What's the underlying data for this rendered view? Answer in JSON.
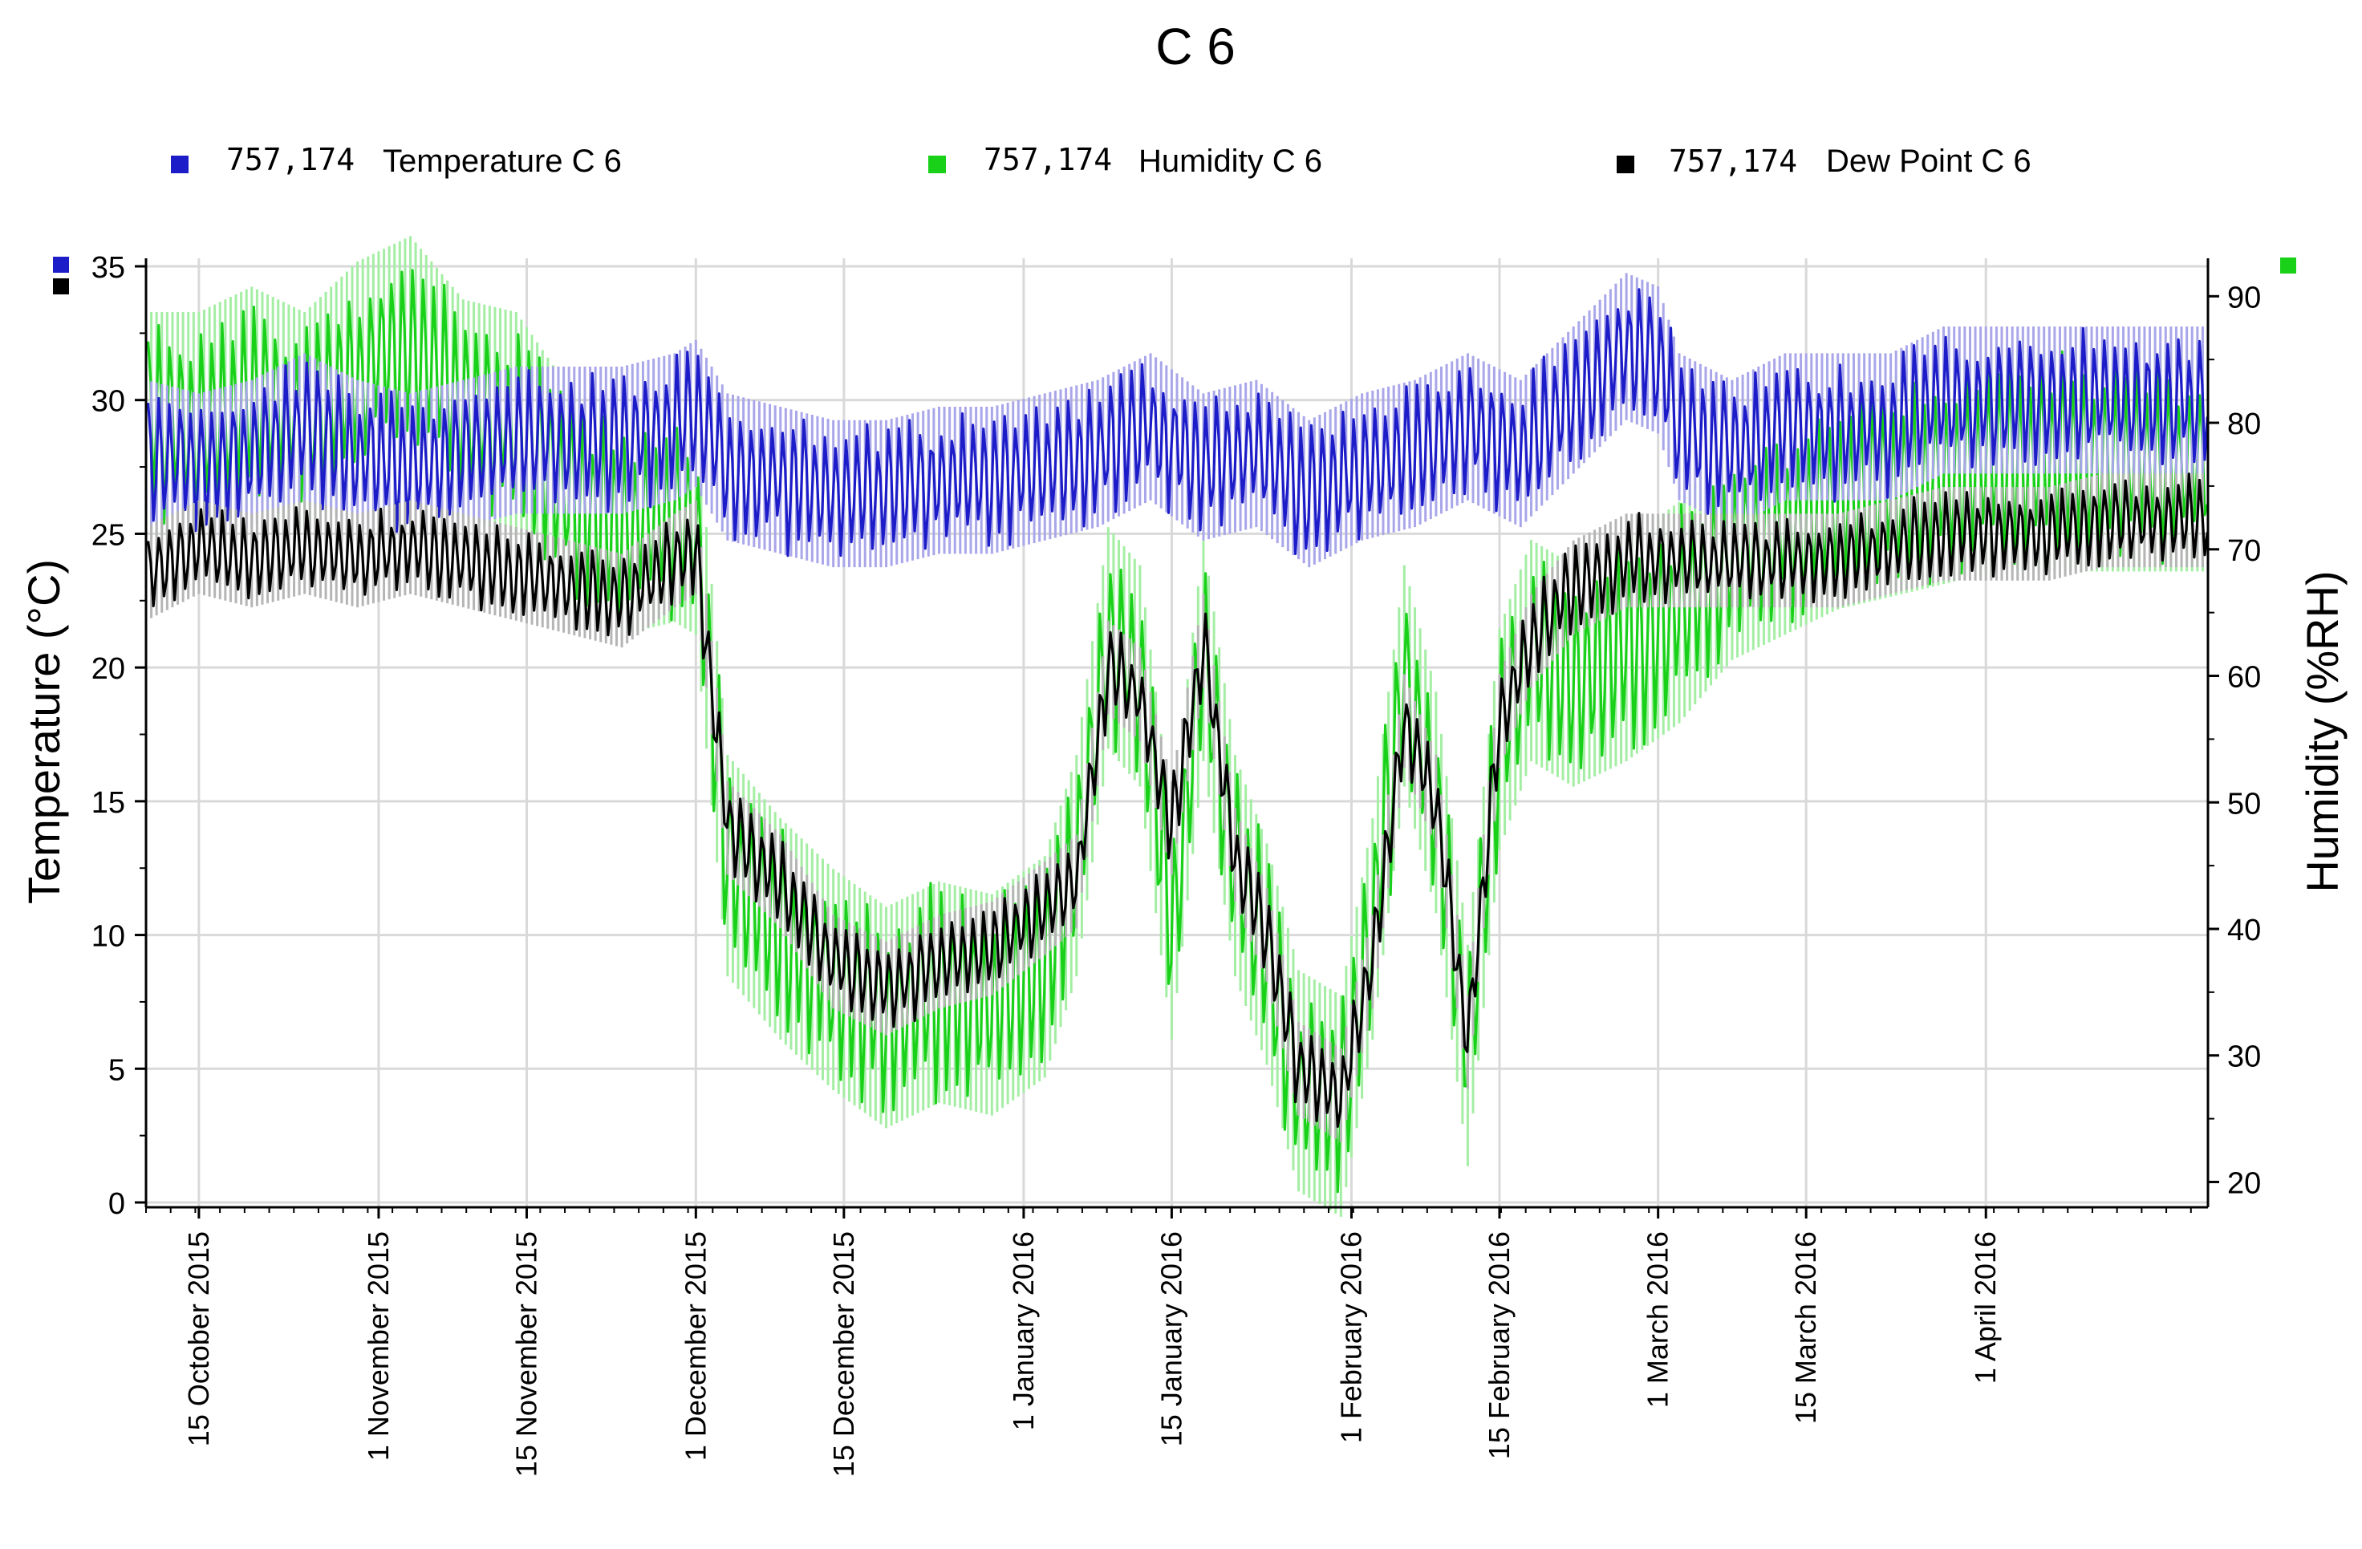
{
  "chart_data": {
    "type": "line",
    "title": "C 6",
    "ylabel_left": "Temperature (°C)",
    "ylabel_right": "Humidity (%RH)",
    "ylim_left": [
      0,
      35
    ],
    "ylim_right": [
      18,
      93
    ],
    "yticks_left": [
      0,
      5,
      10,
      15,
      20,
      25,
      30,
      35
    ],
    "yticks_right": [
      20,
      30,
      40,
      50,
      60,
      70,
      80,
      90
    ],
    "x_range_days": [
      -5,
      190
    ],
    "grid": true,
    "legend_position": "top",
    "x_ticks": [
      {
        "label": "15 October 2015",
        "day": 0
      },
      {
        "label": "1 November 2015",
        "day": 17
      },
      {
        "label": "15 November 2015",
        "day": 31
      },
      {
        "label": "1 December 2015",
        "day": 47
      },
      {
        "label": "15 December 2015",
        "day": 61
      },
      {
        "label": "1 January 2016",
        "day": 78
      },
      {
        "label": "15 January 2016",
        "day": 92
      },
      {
        "label": "1 February 2016",
        "day": 109
      },
      {
        "label": "15 February 2016",
        "day": 123
      },
      {
        "label": "1 March 2016",
        "day": 138
      },
      {
        "label": "15 March 2016",
        "day": 152
      },
      {
        "label": "1 April 2016",
        "day": 169
      }
    ],
    "series": [
      {
        "name": "Temperature C 6",
        "prefix": "757,174",
        "axis": "left",
        "color": "#1c1cc8",
        "light_color": "#a9a6ea",
        "daily_swing": 2.2,
        "x": [
          -5,
          0,
          5,
          10,
          15,
          20,
          25,
          30,
          35,
          40,
          45,
          47,
          50,
          55,
          60,
          65,
          70,
          75,
          80,
          85,
          90,
          95,
          100,
          105,
          110,
          115,
          120,
          125,
          130,
          135,
          138,
          140,
          145,
          150,
          155,
          160,
          165,
          170,
          175,
          180,
          185,
          190
        ],
        "values": [
          28,
          27.5,
          28,
          29,
          28,
          27.5,
          28,
          28.5,
          28.5,
          28.5,
          29,
          29.5,
          27.5,
          27,
          26.5,
          26.5,
          27,
          27,
          27.5,
          28,
          29,
          27.5,
          28,
          26.5,
          27.5,
          28,
          29,
          28,
          30,
          32,
          31.5,
          29,
          28,
          29,
          29,
          29,
          30,
          30,
          30,
          30,
          30,
          30
        ]
      },
      {
        "name": "Humidity C 6",
        "prefix": "757,174",
        "axis": "right",
        "color": "#19d119",
        "light_color": "#a4eea4",
        "daily_swing": 7,
        "x": [
          -5,
          0,
          5,
          10,
          15,
          20,
          25,
          30,
          35,
          40,
          45,
          47,
          50,
          55,
          60,
          65,
          70,
          75,
          80,
          83,
          86,
          89,
          92,
          95,
          98,
          101,
          104,
          108,
          111,
          114,
          117,
          120,
          123,
          126,
          130,
          135,
          140,
          145,
          150,
          155,
          160,
          165,
          170,
          175,
          180,
          185,
          190
        ],
        "values": [
          80,
          80,
          82,
          80,
          84,
          86,
          81,
          80,
          74,
          72,
          73,
          72,
          45,
          40,
          36,
          33,
          35,
          34,
          37,
          45,
          63,
          60,
          40,
          62,
          45,
          38,
          28,
          26,
          40,
          60,
          50,
          30,
          55,
          62,
          60,
          62,
          65,
          70,
          72,
          74,
          75,
          76,
          77,
          77,
          77,
          77,
          77
        ]
      },
      {
        "name": "Dew Point C 6",
        "prefix": "757,174",
        "axis": "left",
        "color": "#000000",
        "light_color": "#b5b5b5",
        "daily_swing": 1.4,
        "x": [
          -5,
          0,
          5,
          10,
          15,
          20,
          25,
          30,
          35,
          40,
          45,
          47,
          50,
          55,
          60,
          65,
          70,
          75,
          80,
          83,
          86,
          89,
          92,
          95,
          98,
          101,
          104,
          108,
          111,
          114,
          117,
          120,
          123,
          126,
          130,
          135,
          140,
          145,
          150,
          155,
          160,
          165,
          170,
          175,
          180,
          185,
          190
        ],
        "values": [
          23.5,
          24.5,
          24,
          24.5,
          24,
          24.5,
          24,
          23.5,
          23,
          22.5,
          24,
          24.5,
          14,
          12,
          9,
          8,
          9,
          9.5,
          11,
          12,
          20,
          19,
          14,
          21,
          13,
          10,
          5,
          4,
          9,
          18,
          15,
          6,
          18,
          21,
          23,
          24,
          24,
          24,
          24,
          24,
          24.5,
          25,
          25,
          25,
          25.5,
          25.5,
          25.5
        ]
      }
    ]
  }
}
